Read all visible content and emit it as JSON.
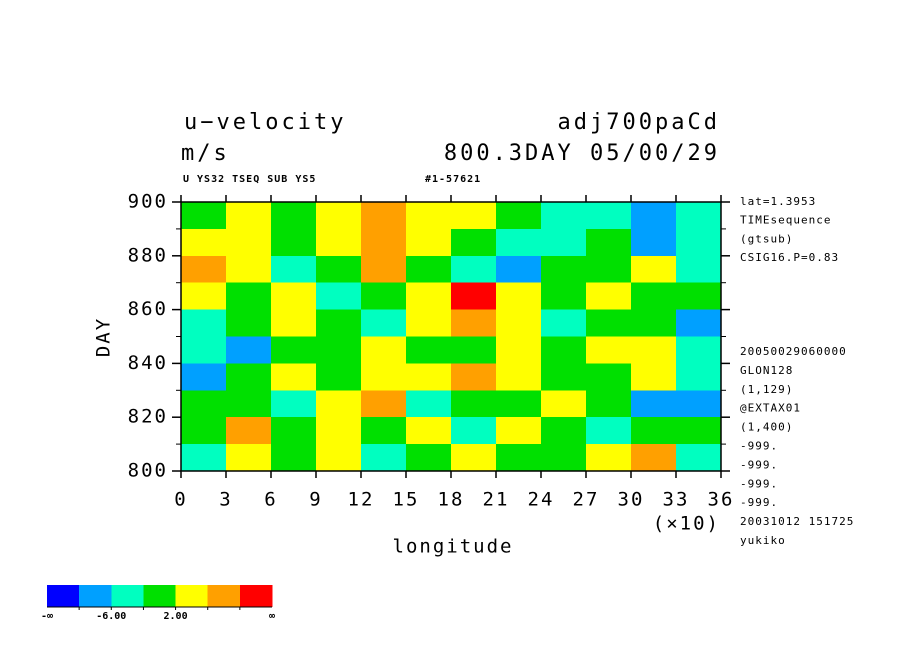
{
  "chart_data": {
    "type": "heatmap",
    "title": "u−velocity",
    "title_right": "adj700paCd",
    "units": "m/s",
    "subtitle_right": "800.3DAY 05/00/29",
    "header_left": "U YS32 TSEQ SUB YS5",
    "header_right": "#1-57621",
    "xlabel": "longitude",
    "x_multiplier": "(×10)",
    "ylabel": "DAY",
    "xlim": [
      0,
      36
    ],
    "xticks": [
      0,
      3,
      6,
      9,
      12,
      15,
      18,
      21,
      24,
      27,
      30,
      33,
      36
    ],
    "ylim": [
      800,
      900
    ],
    "yticks": [
      800,
      820,
      840,
      860,
      880,
      900
    ],
    "x": [
      1.5,
      4.5,
      7.5,
      10.5,
      13.5,
      16.5,
      19.5,
      22.5,
      25.5,
      28.5,
      31.5,
      34.5
    ],
    "y": [
      805,
      815,
      825,
      835,
      845,
      855,
      865,
      875,
      885,
      895
    ],
    "z": [
      [
        -3,
        2,
        -1,
        5,
        -4,
        0,
        3,
        -2,
        1,
        4,
        8,
        -3
      ],
      [
        0,
        8,
        -2,
        2,
        1,
        4,
        -3,
        5,
        -1,
        -4,
        -2,
        0
      ],
      [
        1,
        0,
        -4,
        5,
        9,
        -3,
        0,
        1,
        3,
        -2,
        -7,
        -9
      ],
      [
        -8,
        -2,
        3,
        0,
        2,
        5,
        7,
        3,
        -2,
        0,
        2,
        -5
      ],
      [
        -3,
        -7,
        0,
        1,
        3,
        -2,
        1,
        4,
        0,
        2,
        3,
        -3
      ],
      [
        -6,
        1,
        4,
        -2,
        -4,
        3,
        8,
        2,
        -3,
        1,
        -1,
        -7
      ],
      [
        3,
        0,
        2,
        -3,
        0,
        4,
        11,
        5,
        0,
        3,
        -2,
        1
      ],
      [
        8,
        2,
        -3,
        1,
        8,
        -2,
        -4,
        -7,
        -2,
        0,
        2,
        -3
      ],
      [
        2,
        4,
        0,
        5,
        8,
        3,
        1,
        -3,
        -4,
        -2,
        -7,
        -3
      ],
      [
        0,
        3,
        1,
        4,
        7,
        5,
        4,
        1,
        -3,
        -4,
        -7,
        -3
      ]
    ],
    "colorbar": {
      "colors": [
        "#0000ff",
        "#00a0ff",
        "#00ffc0",
        "#00e000",
        "#ffff00",
        "#ffa000",
        "#ff0000"
      ],
      "edges": [
        -10,
        -6,
        -2,
        2,
        6,
        10
      ],
      "ticks": [
        {
          "value": -6,
          "label": "-6.00"
        },
        {
          "value": 2,
          "label": "2.00"
        }
      ],
      "lower_label": "-∞",
      "upper_label": "∞"
    },
    "info_top": [
      "lat=1.3953",
      "TIMEsequence",
      "(gtsub)",
      "CSIG16.P=0.83"
    ],
    "info_bottom": [
      "20050029060000",
      "GLON128",
      "(1,129)",
      "@EXTAX01",
      "(1,400)",
      "-999.",
      "-999.",
      "-999.",
      "-999.",
      "20031012 151725",
      "yukiko"
    ]
  }
}
